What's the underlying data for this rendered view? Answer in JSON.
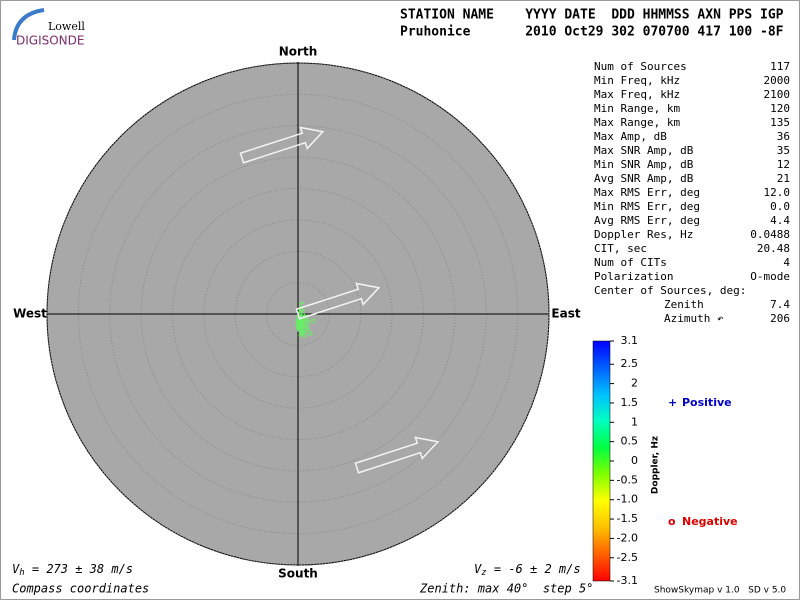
{
  "logo": {
    "top": "Lowell",
    "bottom": "DIGISONDE"
  },
  "header": {
    "line1": "STATION NAME    YYYY DATE  DDD HHMMSS AXN PPS IGP",
    "line2": "Pruhonice       2010 Oct29 302 070700 417 100 -8F"
  },
  "parameters": [
    [
      "Num of Sources",
      "117"
    ],
    [
      "Min Freq, kHz",
      "2000"
    ],
    [
      "Max Freq, kHz",
      "2100"
    ],
    [
      "Min Range, km",
      "120"
    ],
    [
      "Max Range, km",
      "135"
    ],
    [
      "Max Amp, dB",
      "36"
    ],
    [
      "Max SNR Amp, dB",
      "35"
    ],
    [
      "Min SNR Amp, dB",
      "12"
    ],
    [
      "Avg SNR Amp, dB",
      "21"
    ],
    [
      "Max RMS Err, deg",
      "12.0"
    ],
    [
      "Min RMS Err, deg",
      "0.0"
    ],
    [
      "Avg RMS Err, deg",
      "4.4"
    ],
    [
      "Doppler Res, Hz",
      "0.0488"
    ],
    [
      "CIT, sec",
      "20.48"
    ],
    [
      "Num of CITs",
      "4"
    ],
    [
      "Polarization",
      "O-mode"
    ]
  ],
  "center_of_sources": {
    "title": "Center of Sources, deg:",
    "rows": [
      [
        "Zenith",
        "7.4"
      ],
      [
        "Azimuth ↶",
        "206"
      ]
    ]
  },
  "chart_data": {
    "type": "scatter",
    "compass": {
      "north": "North",
      "south": "South",
      "west": "West",
      "east": "East"
    },
    "xlim": [
      -40,
      40
    ],
    "ylim": [
      -40,
      40
    ],
    "rings": [
      5,
      10,
      15,
      20,
      25,
      30,
      35,
      40
    ],
    "plot_color": "#a8a8a8",
    "point_color": "#66ee66",
    "series": [
      {
        "name": "Positive",
        "marker": "+",
        "color": "#0000cc",
        "x": [
          0.57,
          0.48,
          0.7,
          0.19,
          0.57,
          0.0,
          0.38,
          0.13,
          0.64,
          -0.06,
          0.32,
          0.45,
          0.06,
          0.7,
          0.25,
          -0.13,
          0.57,
          0.06,
          0.76,
          0.45,
          0.64,
          0.19,
          0.89,
          0.0
        ],
        "y": [
          1.69,
          1.08,
          0.57,
          0.25,
          -0.19,
          -0.51,
          -0.67,
          -0.89,
          -0.99,
          -1.15,
          -1.31,
          -1.46,
          -1.62,
          -1.72,
          -1.85,
          -1.78,
          -2.04,
          -2.29,
          -2.74,
          -3.38,
          -3.06,
          -0.99,
          -1.21,
          -2.04
        ]
      },
      {
        "name": "Negative",
        "marker": "o",
        "color": "#dd0000",
        "x": [
          0.51,
          0.76,
          1.27,
          0.45,
          0.25,
          0.89,
          1.4,
          2.48,
          1.66,
          0.64,
          1.02,
          1.53,
          1.21,
          0.51,
          0.83,
          1.34,
          0.64,
          1.02,
          1.97,
          0.89,
          0.51,
          0.19,
          0.32,
          0.06
        ],
        "y": [
          0.57,
          -0.13,
          -0.51,
          -0.38,
          -0.76,
          -0.83,
          -1.02,
          -1.08,
          -1.31,
          -1.21,
          -1.46,
          -2.23,
          -1.91,
          -1.62,
          -1.85,
          -2.58,
          -2.61,
          -3.38,
          -3.12,
          -2.99,
          -2.29,
          -2.48,
          -1.4,
          -1.08
        ]
      }
    ],
    "colorbar": {
      "label": "Doppler, Hz",
      "lim": [
        -3.1,
        3.1
      ],
      "colors": [
        "#0000ff",
        "#0060ff",
        "#00c0ff",
        "#00ffc0",
        "#00ff40",
        "#80ff00",
        "#ffff00",
        "#ffc000",
        "#ff6000",
        "#ff0000"
      ],
      "ticks": [
        3.1,
        2.5,
        2,
        1.5,
        1,
        0.5,
        0,
        {
          "value": -0.5,
          "label": "-0.5"
        },
        {
          "value": -1,
          "label": "-1.0"
        },
        {
          "value": -1.5,
          "label": "-1.5"
        },
        {
          "value": -2,
          "label": "-2.0"
        },
        {
          "value": -2.5,
          "label": "-2.5"
        },
        {
          "value": -3.1,
          "label": "-3.1"
        }
      ]
    },
    "vh": {
      "symbol": "V",
      "subscript": "h",
      "text": " = 273 ± 38 m/s"
    },
    "vz": {
      "symbol": "V",
      "subscript": "z",
      "text": " = -6 ± 2 m/s"
    },
    "coords": "Compass coordinates",
    "zenith_note": "Zenith: max 40°  step 5°"
  },
  "footer": "ShowSkymap v 1.0   SD v 5.0"
}
